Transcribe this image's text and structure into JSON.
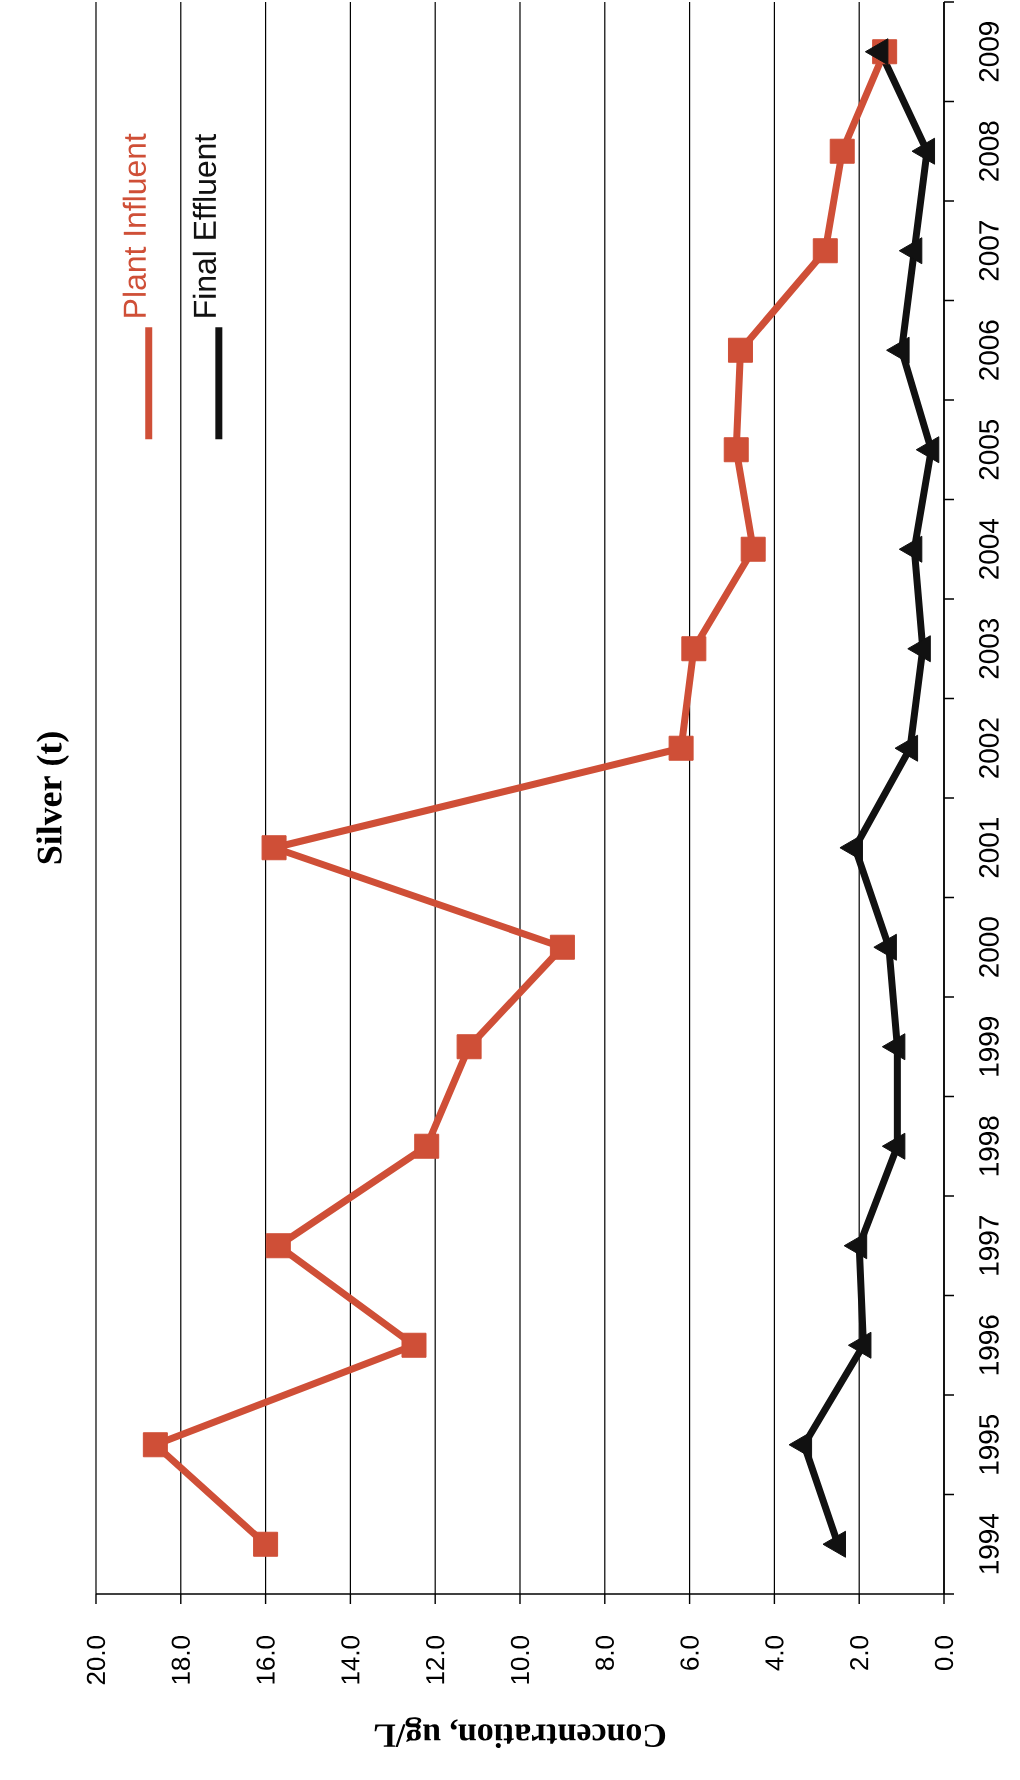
{
  "chart_data": {
    "type": "line",
    "orientation": "horizontal",
    "title": "Silver (t)",
    "xlabel": "Concentration, ug/L",
    "categories": [
      "2009",
      "2008",
      "2007",
      "2006",
      "2005",
      "2004",
      "2003",
      "2002",
      "2001",
      "2000",
      "1999",
      "1998",
      "1997",
      "1996",
      "1995",
      "1994"
    ],
    "series": [
      {
        "name": "Plant Influent",
        "color": "#cf4f37",
        "marker": "square",
        "values": [
          1.4,
          2.4,
          2.8,
          4.8,
          4.9,
          4.5,
          5.9,
          6.2,
          15.8,
          9.0,
          11.2,
          12.2,
          15.7,
          12.5,
          18.6,
          16.0
        ]
      },
      {
        "name": "Final Effluent",
        "color": "#111111",
        "marker": "triangle",
        "values": [
          1.5,
          0.4,
          0.7,
          1.0,
          0.3,
          0.7,
          0.5,
          0.8,
          2.1,
          1.3,
          1.1,
          1.1,
          2.0,
          1.9,
          3.3,
          2.5
        ]
      }
    ],
    "xlim": [
      20,
      0
    ],
    "xticks": [
      {
        "value": 20,
        "label": "20.0"
      },
      {
        "value": 18,
        "label": "18.0"
      },
      {
        "value": 16,
        "label": "16.0"
      },
      {
        "value": 14,
        "label": "14.0"
      },
      {
        "value": 12,
        "label": "12.0"
      },
      {
        "value": 10,
        "label": "10.0"
      },
      {
        "value": 8,
        "label": "8.0"
      },
      {
        "value": 6,
        "label": "6.0"
      },
      {
        "value": 4,
        "label": "4.0"
      },
      {
        "value": 2,
        "label": "2.0"
      },
      {
        "value": 0,
        "label": "0.0"
      }
    ],
    "grid": "x",
    "legend": "top left",
    "line_style": "solid"
  }
}
